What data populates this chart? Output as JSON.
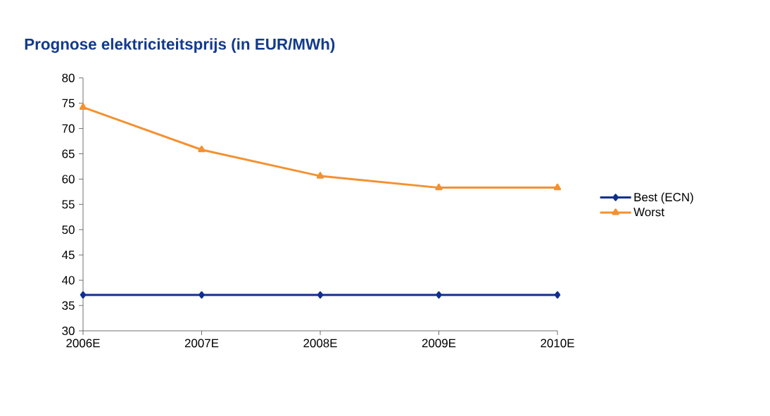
{
  "chart_data": {
    "type": "line",
    "title": "Prognose elektriciteitsprijs (in EUR/MWh)",
    "categories": [
      "2006E",
      "2007E",
      "2008E",
      "2009E",
      "2010E"
    ],
    "series": [
      {
        "name": "Best (ECN)",
        "color": "#10308c",
        "marker": "diamond",
        "values": [
          37.1,
          37.1,
          37.1,
          37.1,
          37.1
        ]
      },
      {
        "name": "Worst",
        "color": "#f39130",
        "marker": "triangle",
        "values": [
          74.2,
          65.8,
          60.6,
          58.3,
          58.3
        ]
      }
    ],
    "ylim": [
      30,
      80
    ],
    "yticks": [
      30,
      35,
      40,
      45,
      50,
      55,
      60,
      65,
      70,
      75,
      80
    ],
    "legend": "right",
    "line_style": "solid"
  }
}
